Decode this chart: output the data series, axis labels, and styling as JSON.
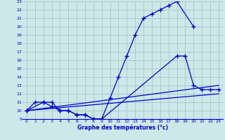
{
  "xlabel": "Graphe des températures (°c)",
  "bg_color": "#cce8e8",
  "grid_color": "#aacccc",
  "line_color": "#0000cc",
  "xlim": [
    -0.5,
    23.5
  ],
  "ylim": [
    9,
    23
  ],
  "xticks": [
    0,
    1,
    2,
    3,
    4,
    5,
    6,
    7,
    8,
    9,
    10,
    11,
    12,
    13,
    14,
    15,
    16,
    17,
    18,
    19,
    20,
    21,
    22,
    23
  ],
  "yticks": [
    9,
    10,
    11,
    12,
    13,
    14,
    15,
    16,
    17,
    18,
    19,
    20,
    21,
    22,
    23
  ],
  "curve1_x": [
    0,
    1,
    2,
    3,
    4,
    5,
    6,
    7,
    8,
    9,
    10,
    11,
    12,
    13,
    14,
    15,
    16,
    17,
    18,
    20
  ],
  "curve1_y": [
    10,
    11,
    11,
    11,
    10,
    10,
    9.5,
    9.5,
    9,
    9,
    11.5,
    14,
    16.5,
    19,
    21,
    21.5,
    22,
    22.5,
    23,
    20
  ],
  "curve2_x": [
    0,
    2,
    3,
    4,
    5,
    6,
    7,
    8,
    9,
    18,
    19,
    20,
    21,
    22,
    23
  ],
  "curve2_y": [
    10,
    11,
    10.5,
    10,
    10,
    9.5,
    9.5,
    9,
    9,
    16.5,
    16.5,
    13,
    12.5,
    12.5,
    12.5
  ],
  "line1_x": [
    0,
    23
  ],
  "line1_y": [
    10,
    13
  ],
  "line2_x": [
    0,
    23
  ],
  "line2_y": [
    10,
    12
  ]
}
